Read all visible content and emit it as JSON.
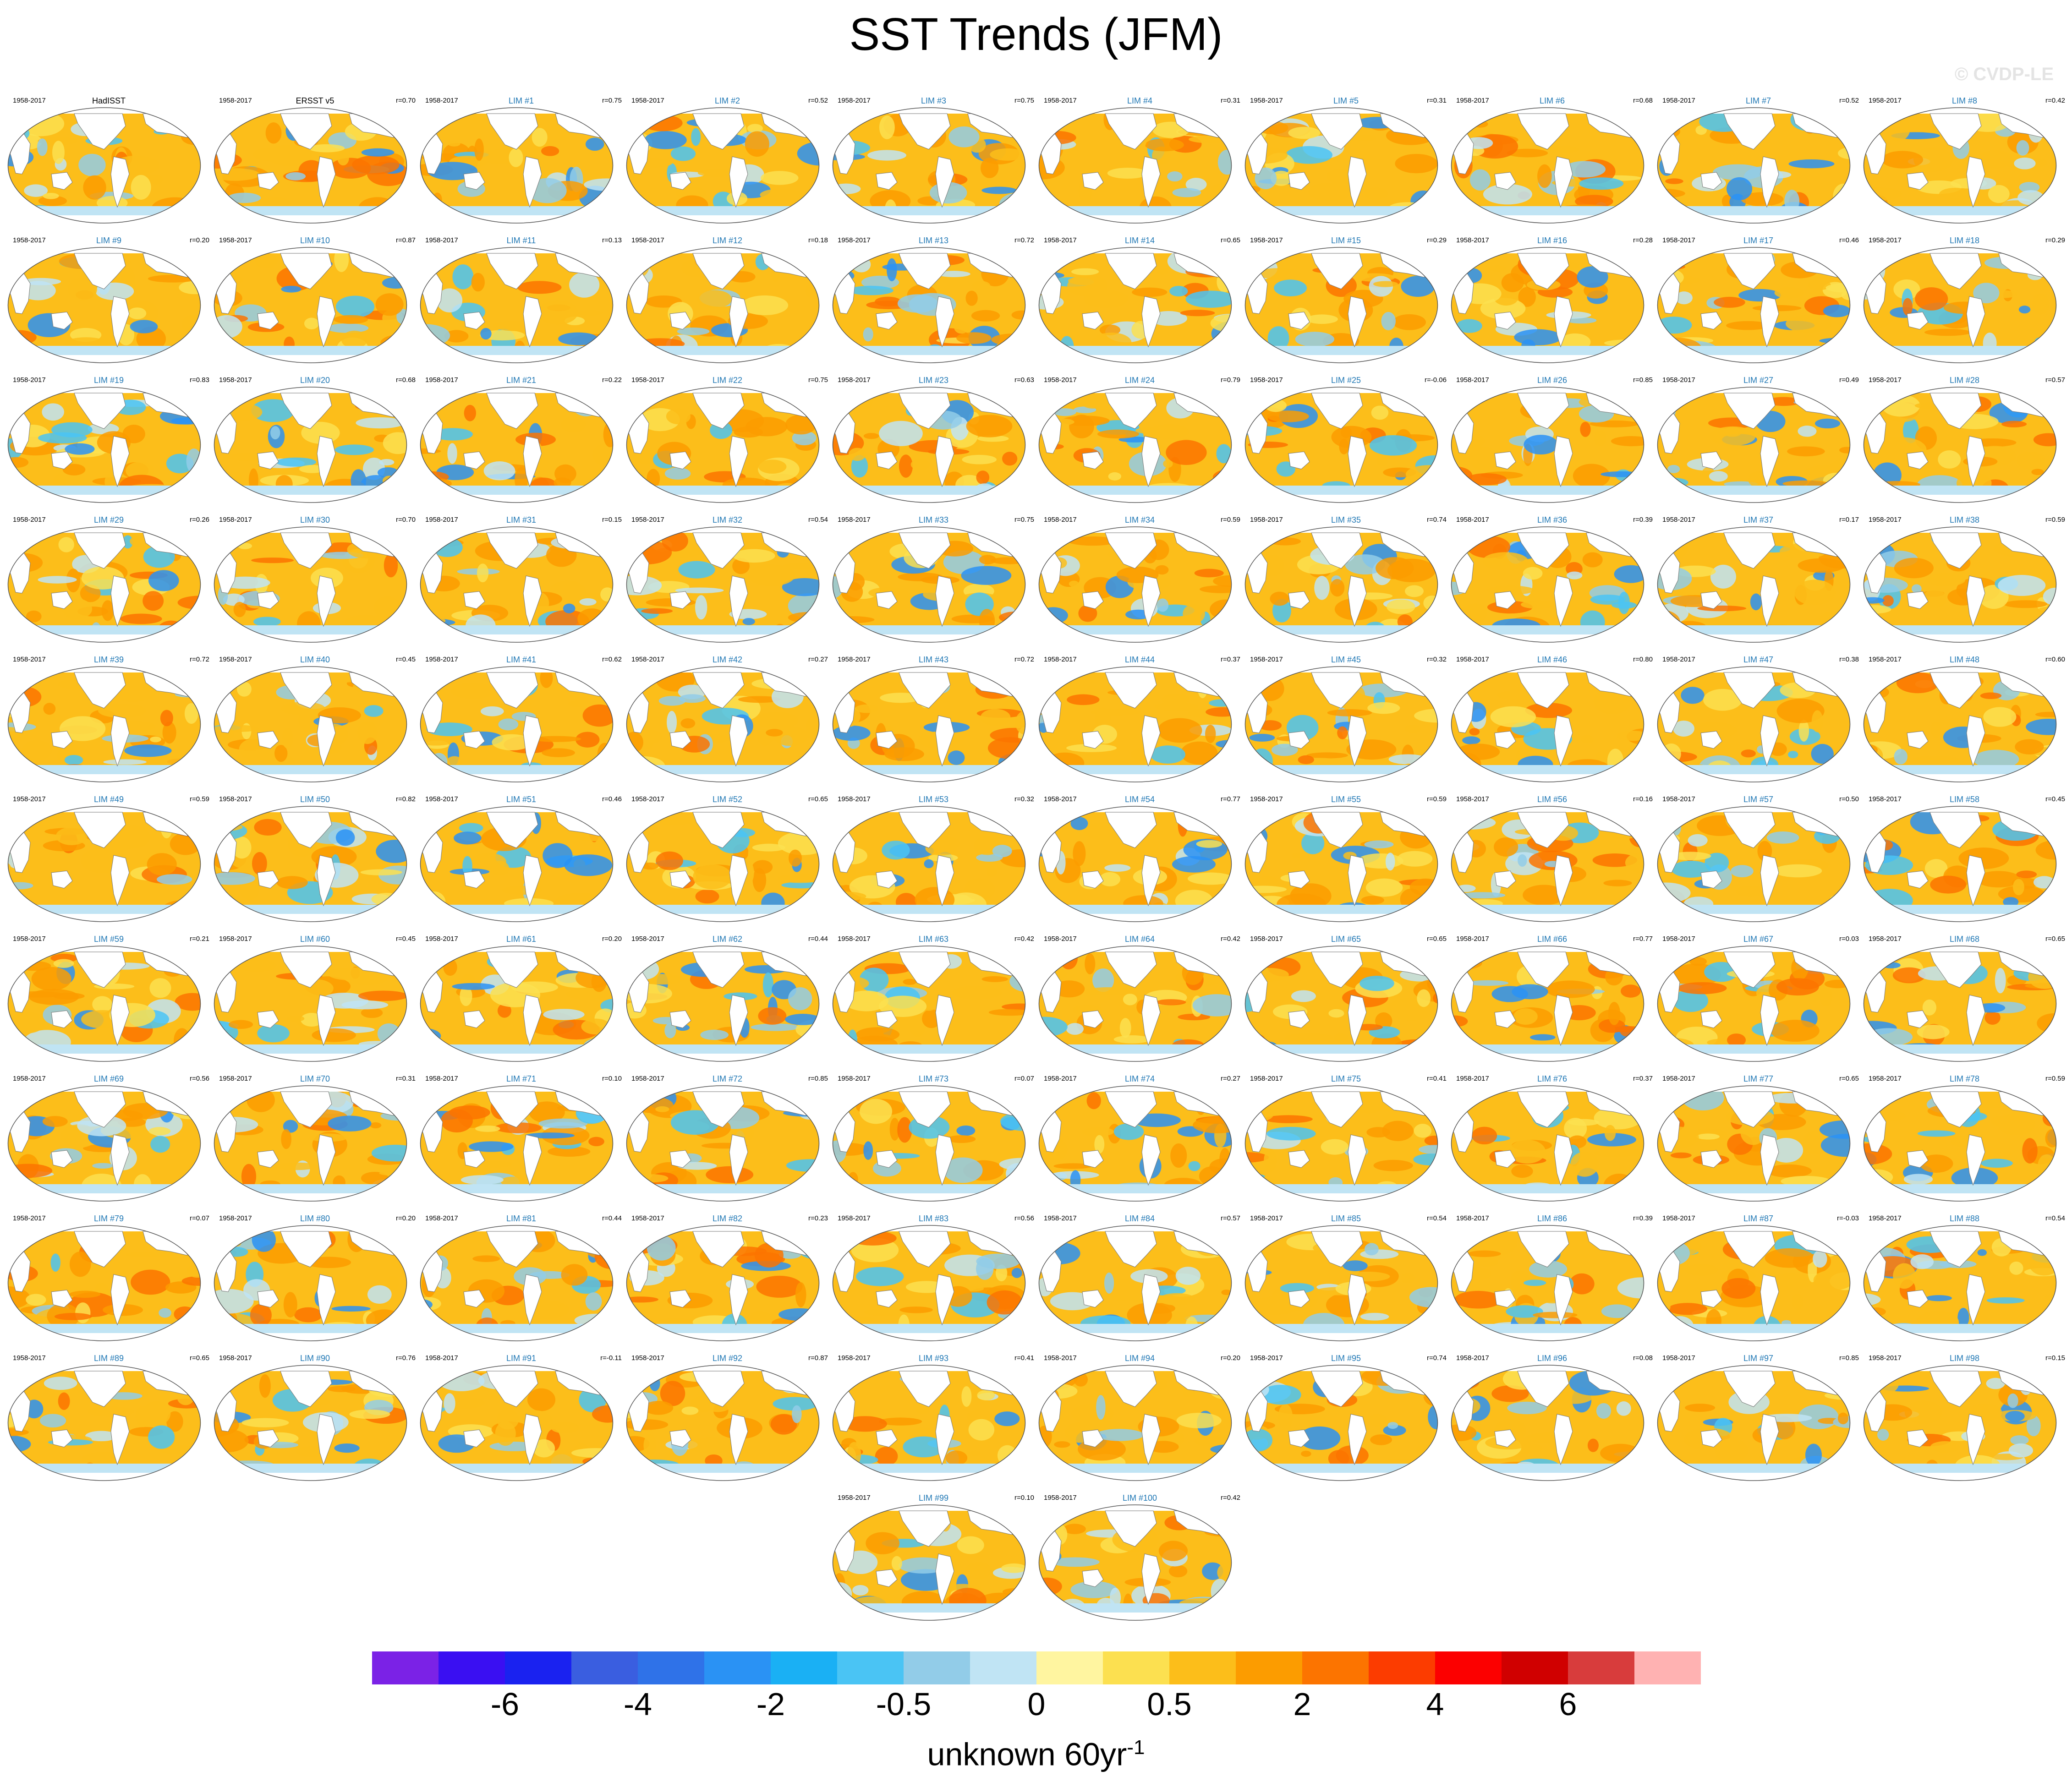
{
  "title": "SST Trends (JFM)",
  "watermark": "© CVDP-LE",
  "period": "1958-2017",
  "units": {
    "main": "unknown 60yr",
    "exponent": "-1"
  },
  "panels": [
    {
      "title": "HadISST",
      "kind": "obs",
      "corr": ""
    },
    {
      "title": "ERSST v5",
      "kind": "obs",
      "corr": "r=0.70"
    },
    {
      "title": "LIM #1",
      "kind": "lim",
      "corr": "r=0.75"
    },
    {
      "title": "LIM #2",
      "kind": "lim",
      "corr": "r=0.52"
    },
    {
      "title": "LIM #3",
      "kind": "lim",
      "corr": "r=0.75"
    },
    {
      "title": "LIM #4",
      "kind": "lim",
      "corr": "r=0.31"
    },
    {
      "title": "LIM #5",
      "kind": "lim",
      "corr": "r=0.31"
    },
    {
      "title": "LIM #6",
      "kind": "lim",
      "corr": "r=0.68"
    },
    {
      "title": "LIM #7",
      "kind": "lim",
      "corr": "r=0.52"
    },
    {
      "title": "LIM #8",
      "kind": "lim",
      "corr": "r=0.42"
    },
    {
      "title": "LIM #9",
      "kind": "lim",
      "corr": "r=0.20"
    },
    {
      "title": "LIM #10",
      "kind": "lim",
      "corr": "r=0.87"
    },
    {
      "title": "LIM #11",
      "kind": "lim",
      "corr": "r=0.13"
    },
    {
      "title": "LIM #12",
      "kind": "lim",
      "corr": "r=0.18"
    },
    {
      "title": "LIM #13",
      "kind": "lim",
      "corr": "r=0.72"
    },
    {
      "title": "LIM #14",
      "kind": "lim",
      "corr": "r=0.65"
    },
    {
      "title": "LIM #15",
      "kind": "lim",
      "corr": "r=0.29"
    },
    {
      "title": "LIM #16",
      "kind": "lim",
      "corr": "r=0.28"
    },
    {
      "title": "LIM #17",
      "kind": "lim",
      "corr": "r=0.46"
    },
    {
      "title": "LIM #18",
      "kind": "lim",
      "corr": "r=0.29"
    },
    {
      "title": "LIM #19",
      "kind": "lim",
      "corr": "r=0.83"
    },
    {
      "title": "LIM #20",
      "kind": "lim",
      "corr": "r=0.68"
    },
    {
      "title": "LIM #21",
      "kind": "lim",
      "corr": "r=0.22"
    },
    {
      "title": "LIM #22",
      "kind": "lim",
      "corr": "r=0.75"
    },
    {
      "title": "LIM #23",
      "kind": "lim",
      "corr": "r=0.63"
    },
    {
      "title": "LIM #24",
      "kind": "lim",
      "corr": "r=0.79"
    },
    {
      "title": "LIM #25",
      "kind": "lim",
      "corr": "r=-0.06"
    },
    {
      "title": "LIM #26",
      "kind": "lim",
      "corr": "r=0.85"
    },
    {
      "title": "LIM #27",
      "kind": "lim",
      "corr": "r=0.49"
    },
    {
      "title": "LIM #28",
      "kind": "lim",
      "corr": "r=0.57"
    },
    {
      "title": "LIM #29",
      "kind": "lim",
      "corr": "r=0.26"
    },
    {
      "title": "LIM #30",
      "kind": "lim",
      "corr": "r=0.70"
    },
    {
      "title": "LIM #31",
      "kind": "lim",
      "corr": "r=0.15"
    },
    {
      "title": "LIM #32",
      "kind": "lim",
      "corr": "r=0.54"
    },
    {
      "title": "LIM #33",
      "kind": "lim",
      "corr": "r=0.75"
    },
    {
      "title": "LIM #34",
      "kind": "lim",
      "corr": "r=0.59"
    },
    {
      "title": "LIM #35",
      "kind": "lim",
      "corr": "r=0.74"
    },
    {
      "title": "LIM #36",
      "kind": "lim",
      "corr": "r=0.39"
    },
    {
      "title": "LIM #37",
      "kind": "lim",
      "corr": "r=0.17"
    },
    {
      "title": "LIM #38",
      "kind": "lim",
      "corr": "r=0.59"
    },
    {
      "title": "LIM #39",
      "kind": "lim",
      "corr": "r=0.72"
    },
    {
      "title": "LIM #40",
      "kind": "lim",
      "corr": "r=0.45"
    },
    {
      "title": "LIM #41",
      "kind": "lim",
      "corr": "r=0.62"
    },
    {
      "title": "LIM #42",
      "kind": "lim",
      "corr": "r=0.27"
    },
    {
      "title": "LIM #43",
      "kind": "lim",
      "corr": "r=0.72"
    },
    {
      "title": "LIM #44",
      "kind": "lim",
      "corr": "r=0.37"
    },
    {
      "title": "LIM #45",
      "kind": "lim",
      "corr": "r=0.32"
    },
    {
      "title": "LIM #46",
      "kind": "lim",
      "corr": "r=0.80"
    },
    {
      "title": "LIM #47",
      "kind": "lim",
      "corr": "r=0.38"
    },
    {
      "title": "LIM #48",
      "kind": "lim",
      "corr": "r=0.60"
    },
    {
      "title": "LIM #49",
      "kind": "lim",
      "corr": "r=0.59"
    },
    {
      "title": "LIM #50",
      "kind": "lim",
      "corr": "r=0.82"
    },
    {
      "title": "LIM #51",
      "kind": "lim",
      "corr": "r=0.46"
    },
    {
      "title": "LIM #52",
      "kind": "lim",
      "corr": "r=0.65"
    },
    {
      "title": "LIM #53",
      "kind": "lim",
      "corr": "r=0.32"
    },
    {
      "title": "LIM #54",
      "kind": "lim",
      "corr": "r=0.77"
    },
    {
      "title": "LIM #55",
      "kind": "lim",
      "corr": "r=0.59"
    },
    {
      "title": "LIM #56",
      "kind": "lim",
      "corr": "r=0.16"
    },
    {
      "title": "LIM #57",
      "kind": "lim",
      "corr": "r=0.50"
    },
    {
      "title": "LIM #58",
      "kind": "lim",
      "corr": "r=0.45"
    },
    {
      "title": "LIM #59",
      "kind": "lim",
      "corr": "r=0.21"
    },
    {
      "title": "LIM #60",
      "kind": "lim",
      "corr": "r=0.45"
    },
    {
      "title": "LIM #61",
      "kind": "lim",
      "corr": "r=0.20"
    },
    {
      "title": "LIM #62",
      "kind": "lim",
      "corr": "r=0.44"
    },
    {
      "title": "LIM #63",
      "kind": "lim",
      "corr": "r=0.42"
    },
    {
      "title": "LIM #64",
      "kind": "lim",
      "corr": "r=0.42"
    },
    {
      "title": "LIM #65",
      "kind": "lim",
      "corr": "r=0.65"
    },
    {
      "title": "LIM #66",
      "kind": "lim",
      "corr": "r=0.77"
    },
    {
      "title": "LIM #67",
      "kind": "lim",
      "corr": "r=0.03"
    },
    {
      "title": "LIM #68",
      "kind": "lim",
      "corr": "r=0.65"
    },
    {
      "title": "LIM #69",
      "kind": "lim",
      "corr": "r=0.56"
    },
    {
      "title": "LIM #70",
      "kind": "lim",
      "corr": "r=0.31"
    },
    {
      "title": "LIM #71",
      "kind": "lim",
      "corr": "r=0.10"
    },
    {
      "title": "LIM #72",
      "kind": "lim",
      "corr": "r=0.85"
    },
    {
      "title": "LIM #73",
      "kind": "lim",
      "corr": "r=0.07"
    },
    {
      "title": "LIM #74",
      "kind": "lim",
      "corr": "r=0.27"
    },
    {
      "title": "LIM #75",
      "kind": "lim",
      "corr": "r=0.41"
    },
    {
      "title": "LIM #76",
      "kind": "lim",
      "corr": "r=0.37"
    },
    {
      "title": "LIM #77",
      "kind": "lim",
      "corr": "r=0.65"
    },
    {
      "title": "LIM #78",
      "kind": "lim",
      "corr": "r=0.59"
    },
    {
      "title": "LIM #79",
      "kind": "lim",
      "corr": "r=0.07"
    },
    {
      "title": "LIM #80",
      "kind": "lim",
      "corr": "r=0.20"
    },
    {
      "title": "LIM #81",
      "kind": "lim",
      "corr": "r=0.44"
    },
    {
      "title": "LIM #82",
      "kind": "lim",
      "corr": "r=0.23"
    },
    {
      "title": "LIM #83",
      "kind": "lim",
      "corr": "r=0.56"
    },
    {
      "title": "LIM #84",
      "kind": "lim",
      "corr": "r=0.57"
    },
    {
      "title": "LIM #85",
      "kind": "lim",
      "corr": "r=0.54"
    },
    {
      "title": "LIM #86",
      "kind": "lim",
      "corr": "r=0.39"
    },
    {
      "title": "LIM #87",
      "kind": "lim",
      "corr": "r=-0.03"
    },
    {
      "title": "LIM #88",
      "kind": "lim",
      "corr": "r=0.54"
    },
    {
      "title": "LIM #89",
      "kind": "lim",
      "corr": "r=0.65"
    },
    {
      "title": "LIM #90",
      "kind": "lim",
      "corr": "r=0.76"
    },
    {
      "title": "LIM #91",
      "kind": "lim",
      "corr": "r=-0.11"
    },
    {
      "title": "LIM #92",
      "kind": "lim",
      "corr": "r=0.87"
    },
    {
      "title": "LIM #93",
      "kind": "lim",
      "corr": "r=0.41"
    },
    {
      "title": "LIM #94",
      "kind": "lim",
      "corr": "r=0.20"
    },
    {
      "title": "LIM #95",
      "kind": "lim",
      "corr": "r=0.74"
    },
    {
      "title": "LIM #96",
      "kind": "lim",
      "corr": "r=0.08"
    },
    {
      "title": "LIM #97",
      "kind": "lim",
      "corr": "r=0.85"
    },
    {
      "title": "LIM #98",
      "kind": "lim",
      "corr": "r=0.15"
    },
    {
      "title": "LIM #99",
      "kind": "lim",
      "corr": "r=0.10"
    },
    {
      "title": "LIM #100",
      "kind": "lim",
      "corr": "r=0.42"
    }
  ],
  "chart_data": {
    "type": "heatmap",
    "title": "SST Trends (JFM)",
    "projection": "global map (Robinson-like ellipse), 102 panels",
    "layout": "10 columns x 10 rows + 2 centered panels",
    "period": "1958-2017",
    "colorbar": {
      "colors": [
        "#7b22e6",
        "#3a0ff2",
        "#1a22f0",
        "#3a5ee0",
        "#2f72e8",
        "#2a92f4",
        "#1ab0f4",
        "#4ac4f4",
        "#92cce8",
        "#c0e4f4",
        "#fff5a0",
        "#fce050",
        "#fcbe1a",
        "#fc9c00",
        "#fc7400",
        "#fc3c00",
        "#fc0000",
        "#d00000",
        "#d83c3c",
        "#ffb2b2"
      ],
      "tick_labels": [
        "-6",
        "-4",
        "-2",
        "-0.5",
        "0",
        "0.5",
        "2",
        "4",
        "6"
      ],
      "label": "unknown 60yr",
      "label_exponent": "-1"
    },
    "pattern": "Predominantly warming (yellow/orange) worldwide; cooling (light blue) in the Southern Ocean band and parts of the eastern/central tropical Pacific; stronger blue patches in LIM #25, #87 and #91."
  }
}
